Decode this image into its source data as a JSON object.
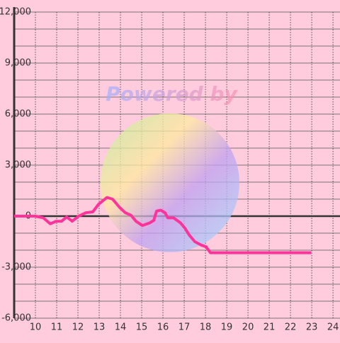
{
  "chart_data": {
    "type": "line",
    "watermark": "Powered by",
    "x": [
      9.0,
      10.0,
      10.37,
      10.7,
      10.97,
      11.23,
      11.47,
      11.73,
      12.03,
      12.37,
      12.7,
      12.97,
      13.37,
      13.63,
      13.97,
      14.23,
      14.5,
      14.73,
      15.03,
      15.37,
      15.57,
      15.7,
      15.9,
      16.1,
      16.23,
      16.5,
      16.83,
      17.03,
      17.23,
      17.5,
      17.8,
      18.03,
      18.23,
      18.97,
      22.97
    ],
    "series": [
      {
        "color": "#ff3399",
        "values": [
          0,
          0,
          -100,
          -450,
          -300,
          -300,
          -50,
          -300,
          0,
          200,
          250,
          700,
          1100,
          1000,
          500,
          200,
          50,
          -300,
          -550,
          -400,
          -250,
          300,
          350,
          200,
          -100,
          -100,
          -400,
          -700,
          -1100,
          -1500,
          -1700,
          -1800,
          -2150,
          -2150,
          -2150
        ]
      }
    ],
    "xlim": [
      9,
      24.33
    ],
    "xticks": [
      10,
      11,
      12,
      13,
      14,
      15,
      16,
      17,
      18,
      19,
      20,
      21,
      22,
      23,
      24
    ],
    "ylim": [
      -6000,
      12000
    ],
    "yticks": [
      {
        "value": -6000,
        "label": "-6,000"
      },
      {
        "value": -3000,
        "label": "-3,000"
      },
      0,
      {
        "value": 3000,
        "label": "3,000"
      },
      {
        "value": 6000,
        "label": "6,000"
      },
      {
        "value": 9000,
        "label": "9,000"
      },
      {
        "value": 12000,
        "label": "12,000"
      }
    ],
    "y_minor_ticks": [
      -5000,
      -4000,
      -2000,
      -1000,
      1000,
      2000,
      4000,
      5000,
      7000,
      8000,
      10000,
      11000
    ],
    "grid": true
  }
}
